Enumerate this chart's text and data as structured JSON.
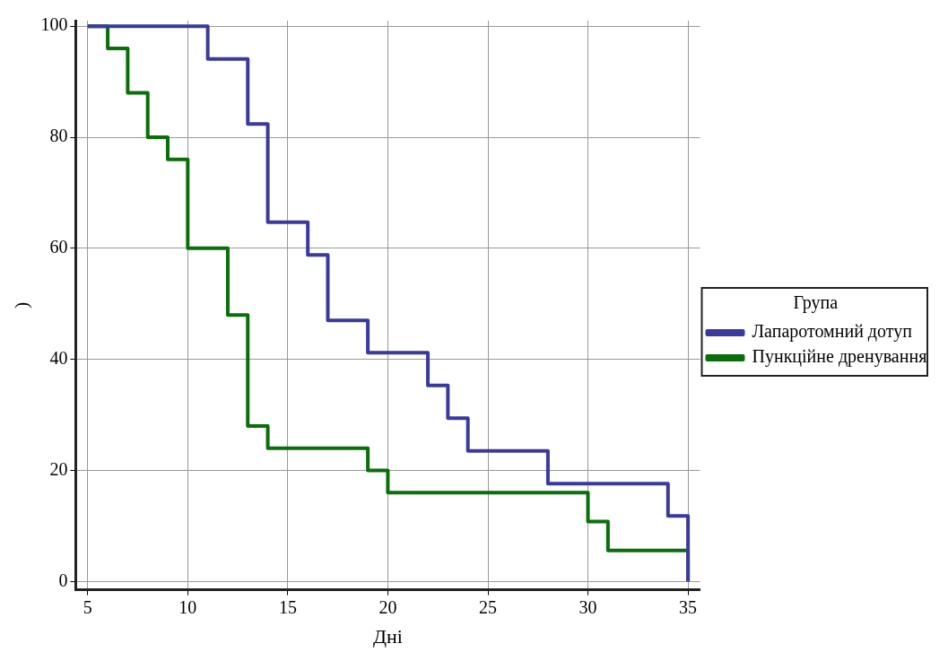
{
  "chart_data": {
    "type": "step",
    "xlabel": "Дні",
    "ylabel": ")",
    "legend_title": "Група",
    "legend": "right",
    "grid": true,
    "line_style": "solid",
    "marker": "none",
    "xlim": [
      4.4,
      35.6
    ],
    "xticks": [
      5,
      10,
      15,
      20,
      25,
      30,
      35
    ],
    "ylim": [
      -1.5,
      101
    ],
    "yticks": [
      0,
      20,
      40,
      60,
      80,
      100
    ],
    "series": [
      {
        "name": "Лапаротомний дотуп",
        "color": "#3a3a9c",
        "x": [
          5,
          11,
          13,
          14,
          16,
          17,
          19,
          22,
          23,
          24,
          28,
          34,
          35
        ],
        "values": [
          100,
          94.1,
          82.4,
          64.7,
          58.8,
          47,
          41.2,
          35.3,
          29.4,
          23.5,
          17.6,
          11.8,
          0
        ]
      },
      {
        "name": "Пункційне дренування",
        "color": "#0a6e0a",
        "x": [
          5,
          6,
          7,
          8,
          9,
          10,
          12,
          13,
          14,
          19,
          20,
          30,
          31,
          35
        ],
        "values": [
          100,
          96,
          88,
          80,
          76,
          60,
          48,
          28,
          24,
          20,
          16,
          10.8,
          5.6,
          0
        ]
      }
    ]
  }
}
